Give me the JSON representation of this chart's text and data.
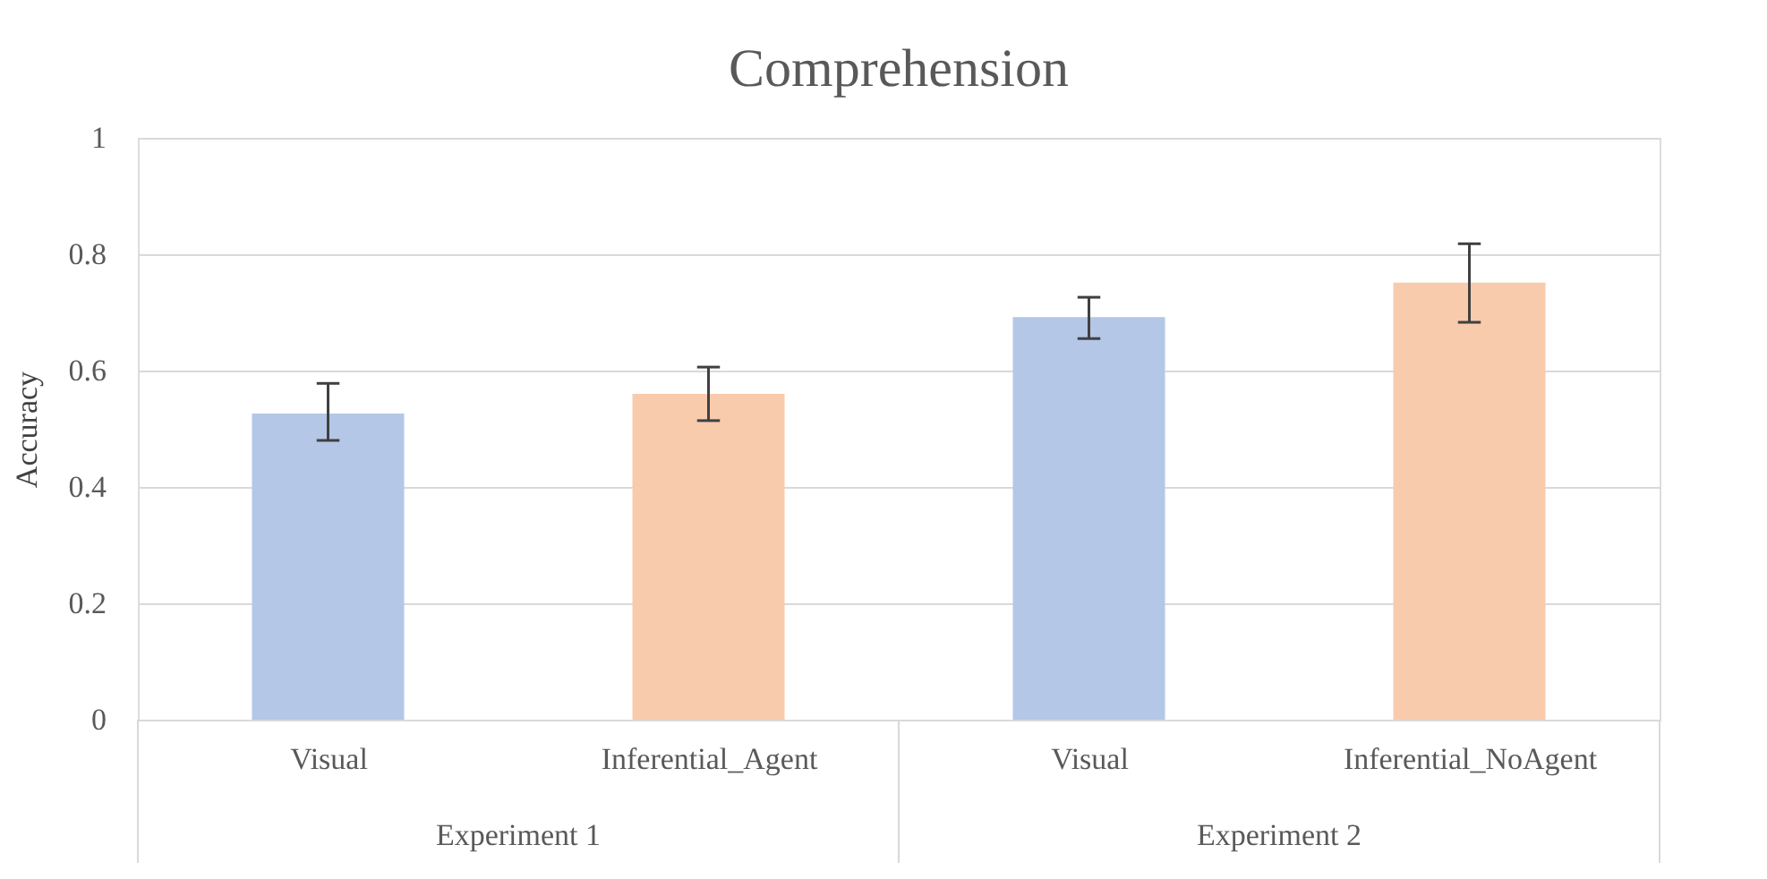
{
  "chart_data": {
    "type": "bar",
    "title": "Comprehension",
    "ylabel": "Accuracy",
    "categories": [
      "Visual",
      "Inferential_Agent",
      "Visual",
      "Inferential_NoAgent"
    ],
    "values": [
      0.526,
      0.56,
      0.692,
      0.751
    ],
    "colors": [
      "#b4c7e7",
      "#f8cbad",
      "#b4c7e7",
      "#f8cbad"
    ],
    "errors": [
      [
        0.48,
        0.578
      ],
      [
        0.514,
        0.606
      ],
      [
        0.655,
        0.726
      ],
      [
        0.683,
        0.818
      ]
    ],
    "annotations": [
      "Experiment 1",
      "Experiment 2"
    ],
    "ylim": [
      0,
      1
    ],
    "yticks": [
      0,
      0.2,
      0.4,
      0.6,
      0.8,
      1
    ],
    "grid": "y"
  }
}
